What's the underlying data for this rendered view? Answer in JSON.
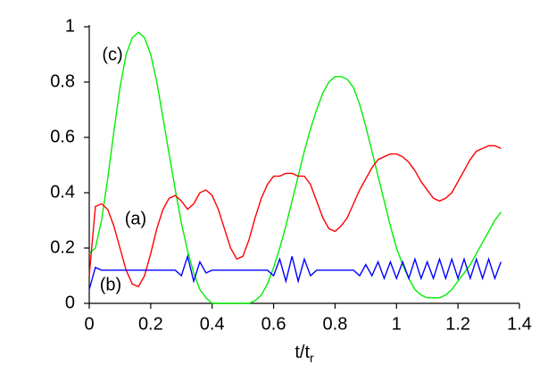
{
  "chart_data": {
    "type": "line",
    "xlabel": "t/t",
    "xlabel_sub": "r",
    "annotations": [
      "(a)",
      "(b)",
      "(c)"
    ],
    "x": [
      0,
      0.02,
      0.04,
      0.06,
      0.08,
      0.1,
      0.12,
      0.14,
      0.16,
      0.18,
      0.2,
      0.22,
      0.24,
      0.26,
      0.28,
      0.3,
      0.32,
      0.34,
      0.36,
      0.38,
      0.4,
      0.42,
      0.44,
      0.46,
      0.48,
      0.5,
      0.52,
      0.54,
      0.56,
      0.58,
      0.6,
      0.62,
      0.64,
      0.66,
      0.68,
      0.7,
      0.72,
      0.74,
      0.76,
      0.78,
      0.8,
      0.82,
      0.84,
      0.86,
      0.88,
      0.9,
      0.92,
      0.94,
      0.96,
      0.98,
      1.0,
      1.02,
      1.04,
      1.06,
      1.08,
      1.1,
      1.12,
      1.14,
      1.16,
      1.18,
      1.2,
      1.22,
      1.24,
      1.26,
      1.28,
      1.3,
      1.32,
      1.34
    ],
    "series": [
      {
        "color": "#ff0000",
        "values": [
          0.1,
          0.35,
          0.36,
          0.34,
          0.28,
          0.2,
          0.12,
          0.07,
          0.06,
          0.1,
          0.18,
          0.27,
          0.34,
          0.38,
          0.39,
          0.37,
          0.34,
          0.36,
          0.4,
          0.41,
          0.39,
          0.34,
          0.27,
          0.2,
          0.16,
          0.17,
          0.23,
          0.31,
          0.38,
          0.43,
          0.46,
          0.46,
          0.47,
          0.47,
          0.46,
          0.46,
          0.43,
          0.37,
          0.31,
          0.27,
          0.26,
          0.28,
          0.31,
          0.36,
          0.41,
          0.45,
          0.49,
          0.52,
          0.53,
          0.54,
          0.54,
          0.53,
          0.51,
          0.48,
          0.44,
          0.41,
          0.38,
          0.37,
          0.38,
          0.4,
          0.44,
          0.48,
          0.52,
          0.55,
          0.56,
          0.57,
          0.57,
          0.56
        ]
      },
      {
        "color": "#0000ff",
        "values": [
          0.05,
          0.13,
          0.12,
          0.12,
          0.12,
          0.12,
          0.12,
          0.12,
          0.12,
          0.12,
          0.12,
          0.12,
          0.12,
          0.12,
          0.12,
          0.1,
          0.17,
          0.08,
          0.15,
          0.11,
          0.12,
          0.12,
          0.12,
          0.12,
          0.12,
          0.12,
          0.12,
          0.12,
          0.12,
          0.12,
          0.1,
          0.16,
          0.08,
          0.17,
          0.08,
          0.16,
          0.1,
          0.12,
          0.12,
          0.12,
          0.12,
          0.12,
          0.12,
          0.12,
          0.1,
          0.14,
          0.1,
          0.15,
          0.09,
          0.15,
          0.09,
          0.15,
          0.09,
          0.16,
          0.09,
          0.15,
          0.09,
          0.16,
          0.09,
          0.16,
          0.09,
          0.16,
          0.09,
          0.16,
          0.09,
          0.16,
          0.09,
          0.15
        ]
      },
      {
        "color": "#00ee00",
        "values": [
          0.18,
          0.2,
          0.3,
          0.45,
          0.62,
          0.78,
          0.9,
          0.96,
          0.98,
          0.96,
          0.9,
          0.8,
          0.67,
          0.54,
          0.41,
          0.29,
          0.19,
          0.11,
          0.05,
          0.02,
          0.0,
          0,
          0,
          0,
          0,
          0,
          0,
          0.01,
          0.03,
          0.07,
          0.13,
          0.2,
          0.28,
          0.37,
          0.46,
          0.55,
          0.63,
          0.7,
          0.76,
          0.8,
          0.82,
          0.82,
          0.81,
          0.78,
          0.72,
          0.64,
          0.55,
          0.46,
          0.37,
          0.28,
          0.2,
          0.14,
          0.09,
          0.05,
          0.03,
          0.02,
          0.02,
          0.02,
          0.03,
          0.05,
          0.08,
          0.11,
          0.14,
          0.18,
          0.22,
          0.26,
          0.3,
          0.33
        ]
      }
    ],
    "xlim": [
      0,
      1.4
    ],
    "xticks": [
      0,
      0.2,
      0.4,
      0.6,
      0.8,
      1,
      1.2,
      1.4
    ],
    "ylim": [
      0,
      1
    ],
    "yticks": [
      0,
      0.2,
      0.4,
      0.6,
      0.8,
      1
    ]
  }
}
